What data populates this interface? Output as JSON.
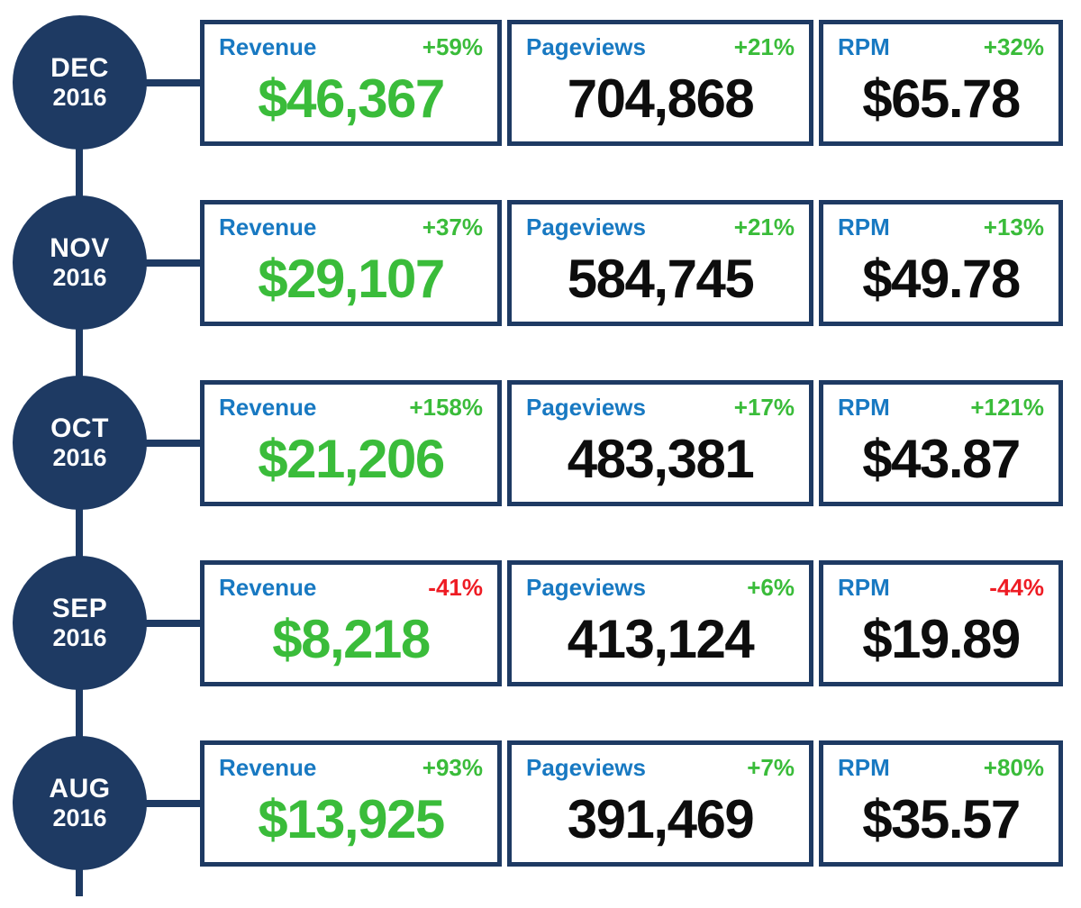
{
  "colors": {
    "navy": "#1e3a63",
    "label_blue": "#1879c2",
    "positive_green": "#3abc3a",
    "negative_red": "#ee1c24",
    "value_black": "#0d0d0d",
    "background": "#ffffff"
  },
  "rows": [
    {
      "month": "DEC",
      "year": "2016",
      "revenue": {
        "label": "Revenue",
        "change": "+59%",
        "change_dir": "up",
        "value": "$46,367"
      },
      "pageviews": {
        "label": "Pageviews",
        "change": "+21%",
        "change_dir": "up",
        "value": "704,868"
      },
      "rpm": {
        "label": "RPM",
        "change": "+32%",
        "change_dir": "up",
        "value": "$65.78"
      }
    },
    {
      "month": "NOV",
      "year": "2016",
      "revenue": {
        "label": "Revenue",
        "change": "+37%",
        "change_dir": "up",
        "value": "$29,107"
      },
      "pageviews": {
        "label": "Pageviews",
        "change": "+21%",
        "change_dir": "up",
        "value": "584,745"
      },
      "rpm": {
        "label": "RPM",
        "change": "+13%",
        "change_dir": "up",
        "value": "$49.78"
      }
    },
    {
      "month": "OCT",
      "year": "2016",
      "revenue": {
        "label": "Revenue",
        "change": "+158%",
        "change_dir": "up",
        "value": "$21,206"
      },
      "pageviews": {
        "label": "Pageviews",
        "change": "+17%",
        "change_dir": "up",
        "value": "483,381"
      },
      "rpm": {
        "label": "RPM",
        "change": "+121%",
        "change_dir": "up",
        "value": "$43.87"
      }
    },
    {
      "month": "SEP",
      "year": "2016",
      "revenue": {
        "label": "Revenue",
        "change": "-41%",
        "change_dir": "down",
        "value": "$8,218"
      },
      "pageviews": {
        "label": "Pageviews",
        "change": "+6%",
        "change_dir": "up",
        "value": "413,124"
      },
      "rpm": {
        "label": "RPM",
        "change": "-44%",
        "change_dir": "down",
        "value": "$19.89"
      }
    },
    {
      "month": "AUG",
      "year": "2016",
      "revenue": {
        "label": "Revenue",
        "change": "+93%",
        "change_dir": "up",
        "value": "$13,925"
      },
      "pageviews": {
        "label": "Pageviews",
        "change": "+7%",
        "change_dir": "up",
        "value": "391,469"
      },
      "rpm": {
        "label": "RPM",
        "change": "+80%",
        "change_dir": "up",
        "value": "$35.57"
      }
    }
  ],
  "chart_data": {
    "type": "table",
    "title": "Monthly Revenue, Pageviews and RPM timeline",
    "categories": [
      "DEC 2016",
      "NOV 2016",
      "OCT 2016",
      "SEP 2016",
      "AUG 2016"
    ],
    "series": [
      {
        "name": "Revenue ($)",
        "values": [
          46367,
          29107,
          21206,
          8218,
          13925
        ],
        "change_pct": [
          59,
          37,
          158,
          -41,
          93
        ]
      },
      {
        "name": "Pageviews",
        "values": [
          704868,
          584745,
          483381,
          413124,
          391469
        ],
        "change_pct": [
          21,
          21,
          17,
          6,
          7
        ]
      },
      {
        "name": "RPM ($ per 1000)",
        "values": [
          65.78,
          49.78,
          43.87,
          19.89,
          35.57
        ],
        "change_pct": [
          32,
          13,
          121,
          -44,
          80
        ]
      }
    ],
    "layout": "vertical timeline, newest month at top"
  }
}
